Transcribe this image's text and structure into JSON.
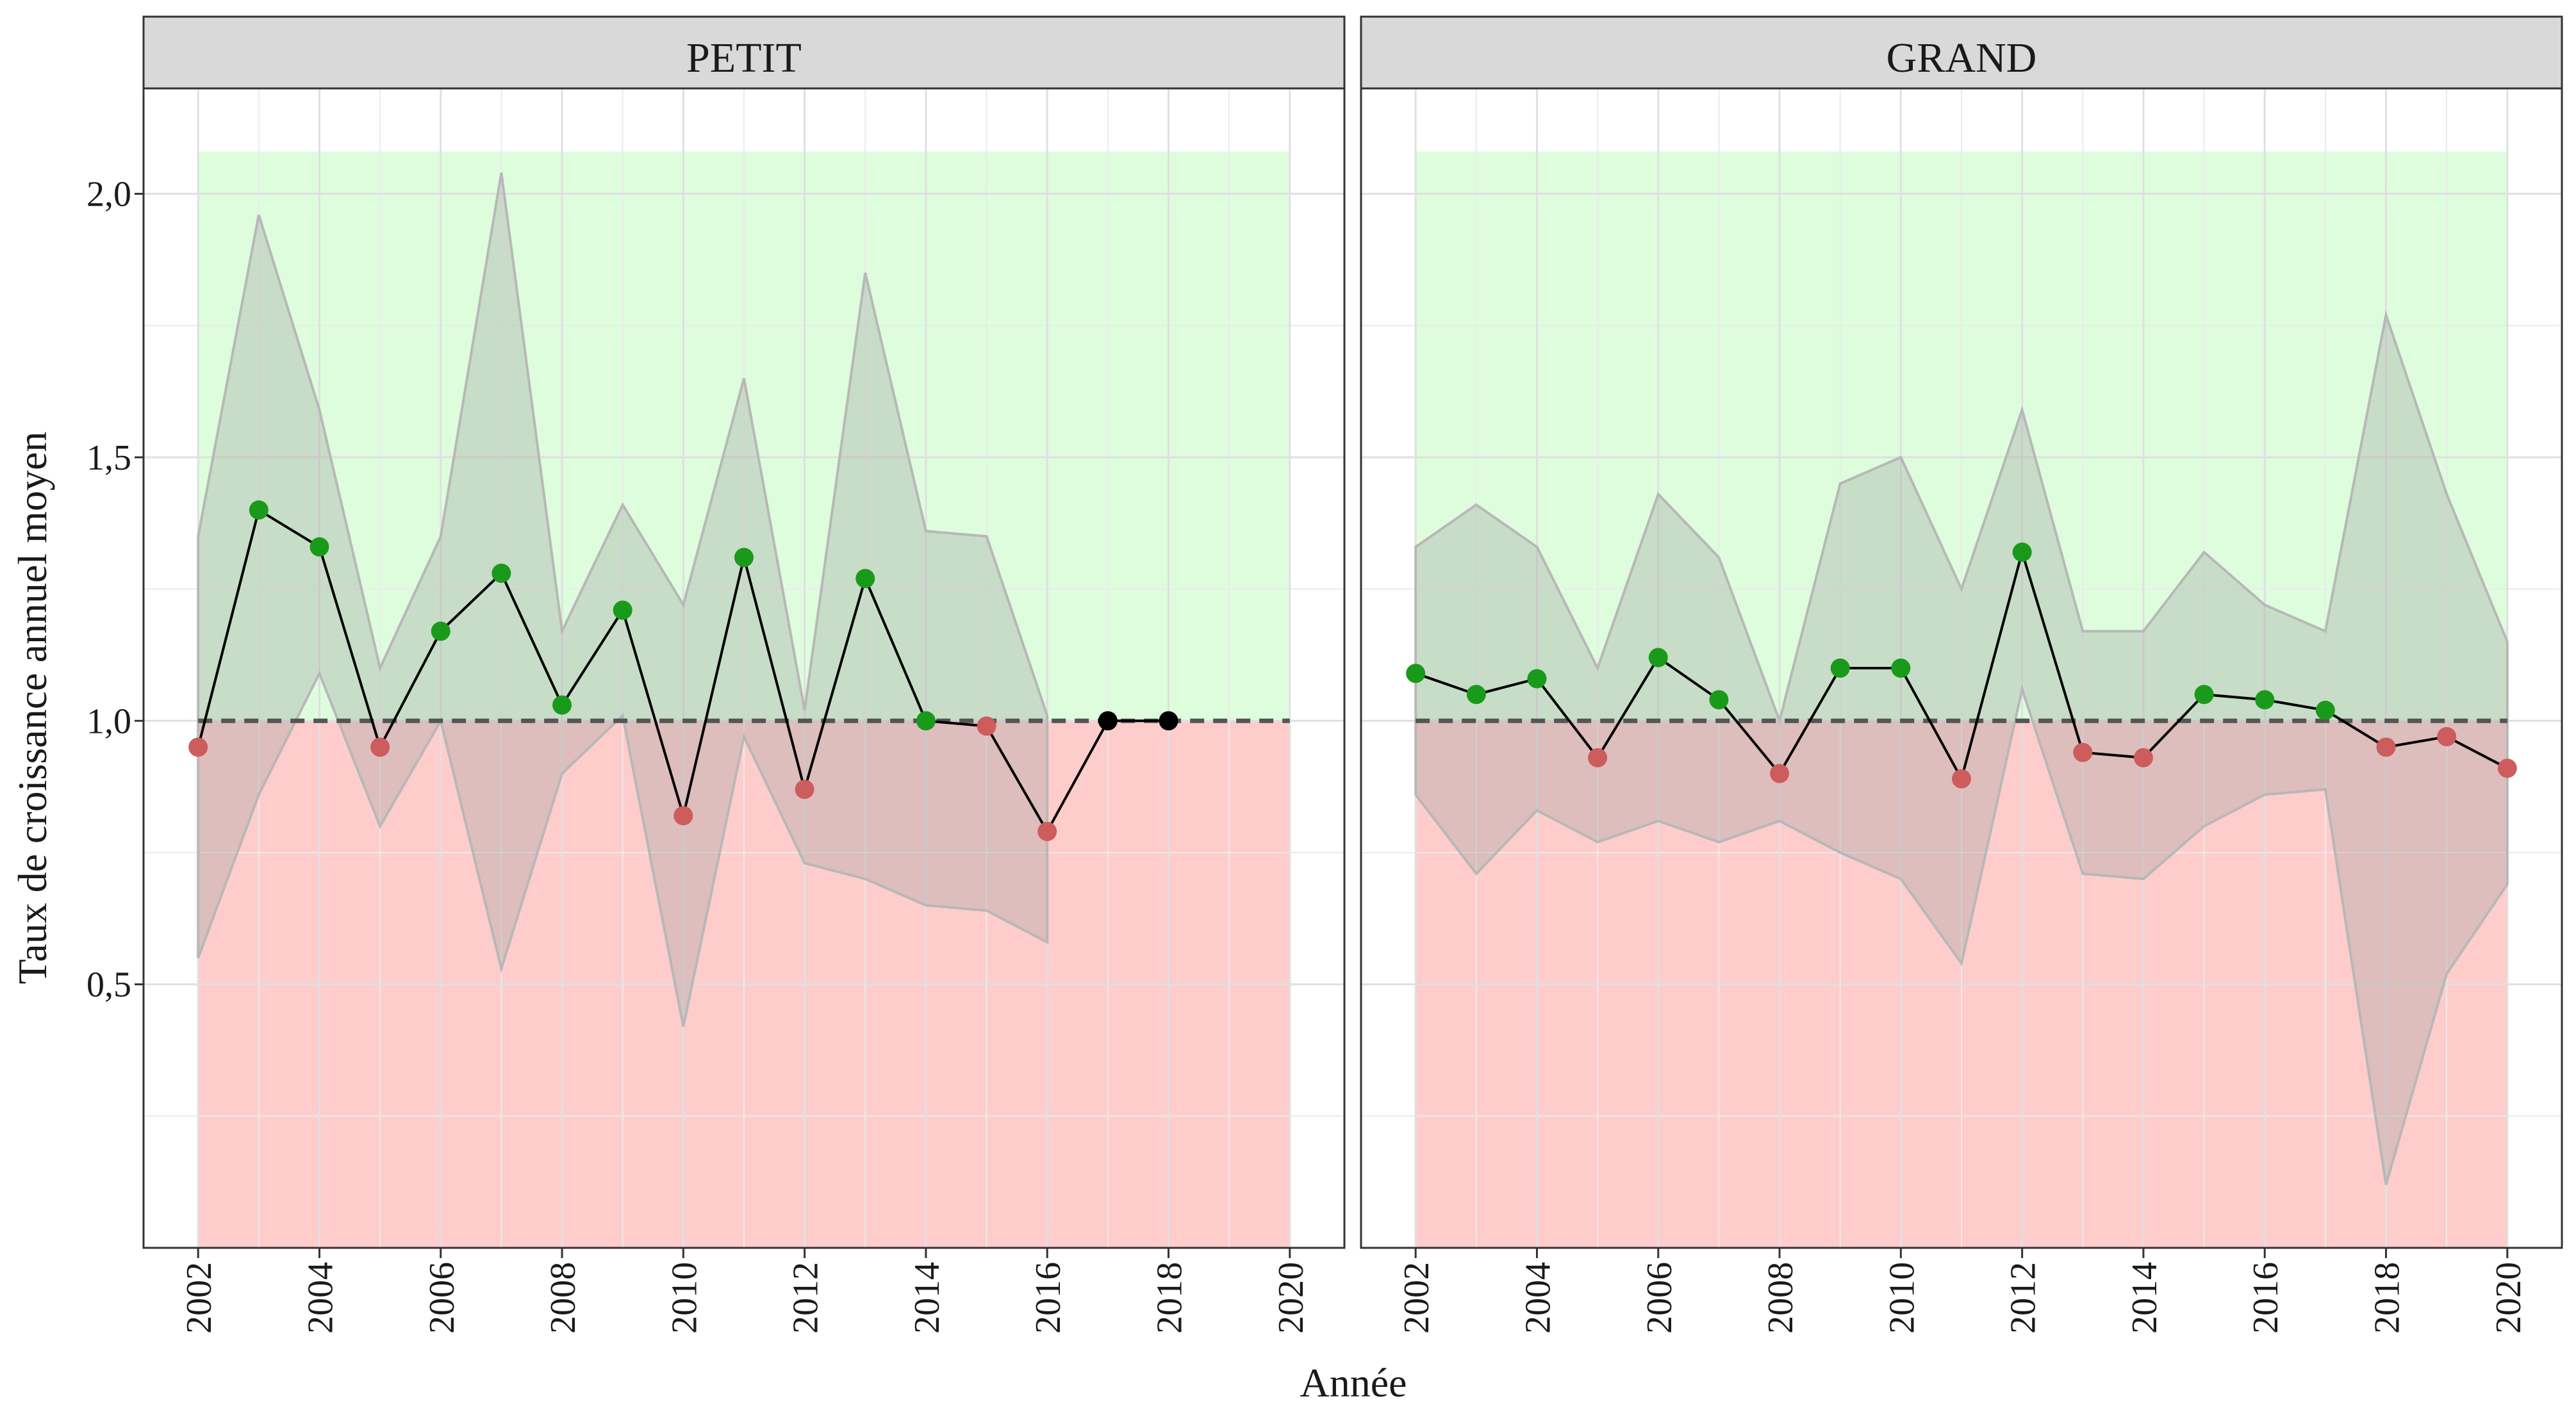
{
  "chart_data": {
    "type": "line",
    "title": "",
    "xlabel": "Année",
    "ylabel": "Taux de croissance annuel moyen",
    "xlim": [
      2001.1,
      2020.9
    ],
    "ylim": [
      0.0,
      2.2
    ],
    "x_ticks": [
      2002,
      2004,
      2006,
      2008,
      2010,
      2012,
      2014,
      2016,
      2018,
      2020
    ],
    "y_ticks": [
      0.5,
      1.0,
      1.5,
      2.0
    ],
    "y_tick_labels": [
      "0,5",
      "1,0",
      "1,5",
      "2,0"
    ],
    "reference_line": 1.0,
    "band_top": 2.08,
    "colors": {
      "increase": "#1a9a1a",
      "decrease": "#cd5c5c",
      "neutral": "#000000",
      "green_zone": "#ddfddd",
      "red_zone": "#ffcccc",
      "ci_fill": "#a0a0a0",
      "ci_stroke": "#b8b8b8",
      "strip_bg": "#d9d9d9"
    },
    "panels": [
      {
        "name": "Petit",
        "label": "PETIT",
        "x": [
          2002,
          2003,
          2004,
          2005,
          2006,
          2007,
          2008,
          2009,
          2010,
          2011,
          2012,
          2013,
          2014,
          2015,
          2016,
          2017,
          2018
        ],
        "y": [
          0.95,
          1.4,
          1.33,
          0.95,
          1.17,
          1.28,
          1.03,
          1.21,
          0.82,
          1.31,
          0.87,
          1.27,
          1.0,
          0.99,
          0.79,
          1.0,
          1.0
        ],
        "lower": [
          0.55,
          0.86,
          1.09,
          0.8,
          1.0,
          0.53,
          0.9,
          1.01,
          0.42,
          0.97,
          0.73,
          0.7,
          0.65,
          0.64,
          0.58,
          null,
          null
        ],
        "upper": [
          1.35,
          1.96,
          1.59,
          1.1,
          1.35,
          2.04,
          1.17,
          1.41,
          1.22,
          1.65,
          1.02,
          1.85,
          1.36,
          1.35,
          1.01,
          null,
          null
        ],
        "status": [
          "down",
          "up",
          "up",
          "down",
          "up",
          "up",
          "up",
          "up",
          "down",
          "up",
          "down",
          "up",
          "up",
          "down",
          "down",
          "neutral",
          "neutral"
        ]
      },
      {
        "name": "Grand",
        "label": "GRAND",
        "x": [
          2002,
          2003,
          2004,
          2005,
          2006,
          2007,
          2008,
          2009,
          2010,
          2011,
          2012,
          2013,
          2014,
          2015,
          2016,
          2017,
          2018,
          2019,
          2020
        ],
        "y": [
          1.09,
          1.05,
          1.08,
          0.93,
          1.12,
          1.04,
          0.9,
          1.1,
          1.1,
          0.89,
          1.32,
          0.94,
          0.93,
          1.05,
          1.04,
          1.02,
          0.95,
          0.97,
          0.91
        ],
        "lower": [
          0.86,
          0.71,
          0.83,
          0.77,
          0.81,
          0.77,
          0.81,
          0.75,
          0.7,
          0.54,
          1.06,
          0.71,
          0.7,
          0.8,
          0.86,
          0.87,
          0.12,
          0.52,
          0.69
        ],
        "upper": [
          1.33,
          1.41,
          1.33,
          1.1,
          1.43,
          1.31,
          1.0,
          1.45,
          1.5,
          1.25,
          1.59,
          1.17,
          1.17,
          1.32,
          1.22,
          1.17,
          1.77,
          1.43,
          1.15
        ],
        "status": [
          "up",
          "up",
          "up",
          "down",
          "up",
          "up",
          "down",
          "up",
          "up",
          "down",
          "up",
          "down",
          "down",
          "up",
          "up",
          "up",
          "down",
          "down",
          "down"
        ]
      }
    ]
  }
}
